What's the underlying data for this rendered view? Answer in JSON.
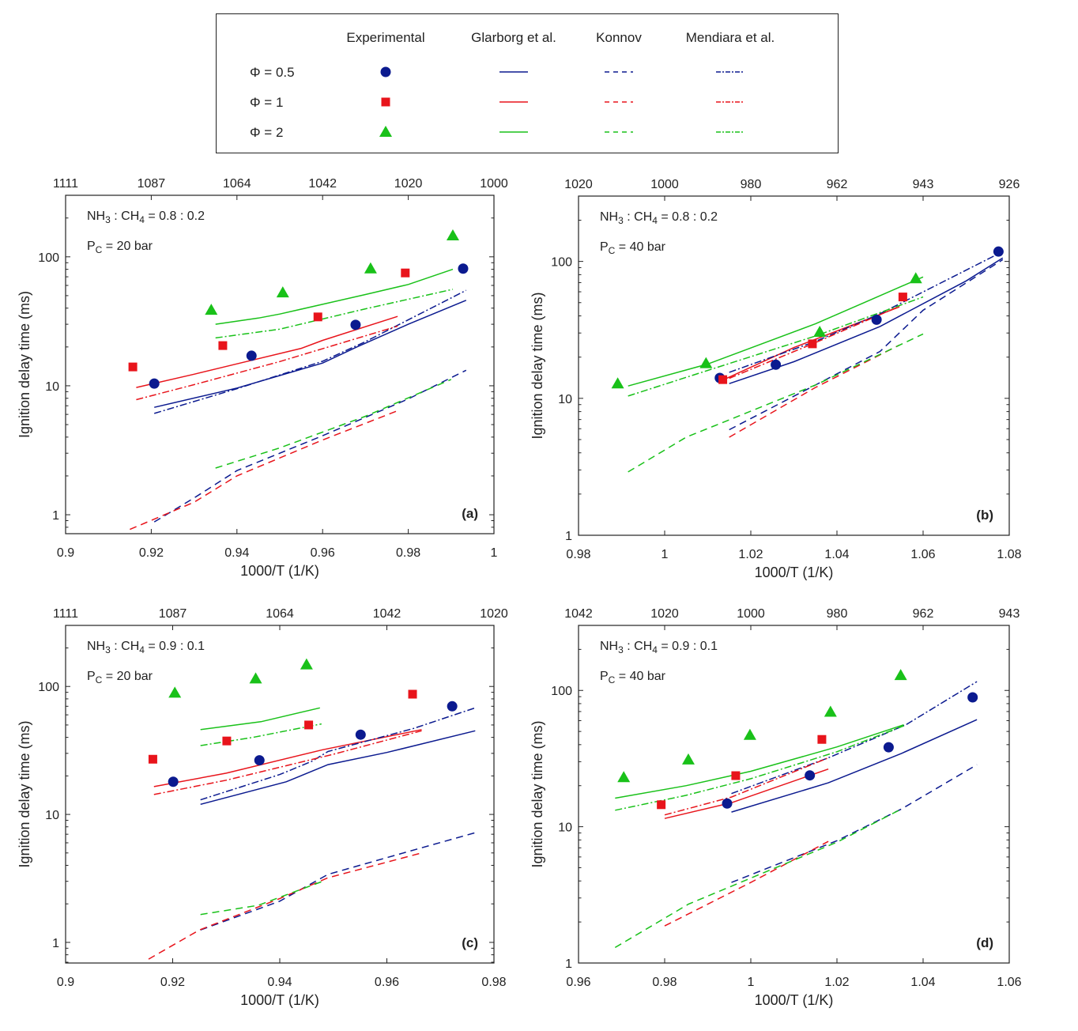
{
  "legend": {
    "column_headers": [
      "Experimental",
      "Glarborg et al.",
      "Konnov",
      "Mendiara et al."
    ],
    "row_labels": [
      "Φ = 0.5",
      "Φ = 1",
      "Φ = 2"
    ],
    "markers": [
      "circle",
      "square",
      "triangle"
    ],
    "line_styles": [
      "solid",
      "dashed",
      "dashdot"
    ]
  },
  "colors": {
    "phi_0_5": "#0b1a8f",
    "phi_1": "#e8141b",
    "phi_2": "#19c119",
    "axis": "#222222"
  },
  "chart_data": [
    {
      "id": "a",
      "type": "scatter",
      "panel_label": "(a)",
      "annotation_mix": "NH3 : CH4 = 0.8 : 0.2",
      "annotation_mix_parts": {
        "a": "NH",
        "a_sub": "3",
        "b": " : CH",
        "b_sub": "4",
        "rest": " = 0.8 : 0.2"
      },
      "annotation_pressure_parts": {
        "p": "P",
        "p_sub": "C",
        "rest": " = 20 bar"
      },
      "xlabel": "1000/T (1/K)",
      "ylabel": "Ignition delay time (ms)",
      "xlim": [
        0.9,
        1.0
      ],
      "ylim": [
        0.713,
        300
      ],
      "yscale": "log",
      "xticks": [
        0.9,
        0.92,
        0.94,
        0.96,
        0.98,
        1.0
      ],
      "xtick_labels": [
        "0.9",
        "0.92",
        "0.94",
        "0.96",
        "0.98",
        "1"
      ],
      "yticks": [
        1,
        10,
        100
      ],
      "ytick_labels": [
        "1",
        "10",
        "100"
      ],
      "top_tick_labels": [
        "1111",
        "1087",
        "1064",
        "1042",
        "1020",
        "1000"
      ],
      "experimental": {
        "phi_0_5": {
          "x": [
            0.9207,
            0.9434,
            0.9677,
            0.9928
          ],
          "y": [
            10.4,
            17.1,
            29.7,
            81
          ]
        },
        "phi_1": {
          "x": [
            0.9157,
            0.9367,
            0.9589,
            0.9793
          ],
          "y": [
            14.0,
            20.5,
            34.2,
            75
          ]
        },
        "phi_2": {
          "x": [
            0.934,
            0.9507,
            0.9712,
            0.9904
          ],
          "y": [
            38.7,
            52.8,
            81,
            146
          ]
        }
      },
      "models": {
        "glarborg": {
          "phi_0_5": {
            "x": [
              0.9207,
              0.94,
              0.96,
              0.968,
              0.98,
              0.9935
            ],
            "y": [
              6.8,
              9.6,
              15.0,
              20.0,
              30.0,
              46
            ]
          },
          "phi_1": {
            "x": [
              0.9165,
              0.93,
              0.94,
              0.955,
              0.96,
              0.9775
            ],
            "y": [
              9.7,
              12.3,
              14.8,
              19.5,
              22.5,
              34.5
            ]
          },
          "phi_2": {
            "x": [
              0.935,
              0.945,
              0.95,
              0.97,
              0.98,
              0.9904
            ],
            "y": [
              30.0,
              33.5,
              36.0,
              51.0,
              61.0,
              80
            ]
          }
        },
        "konnov": {
          "phi_0_5": {
            "x": [
              0.9207,
              0.93,
              0.94,
              0.96,
              0.98,
              0.9935
            ],
            "y": [
              0.88,
              1.35,
              2.2,
              4.1,
              7.9,
              13.2
            ]
          },
          "phi_1": {
            "x": [
              0.915,
              0.93,
              0.94,
              0.96,
              0.9775
            ],
            "y": [
              0.77,
              1.25,
              2.0,
              3.8,
              6.4
            ]
          },
          "phi_2": {
            "x": [
              0.935,
              0.95,
              0.97,
              0.99
            ],
            "y": [
              2.3,
              3.3,
              5.8,
              11.2
            ]
          }
        },
        "mendiara": {
          "phi_0_5": {
            "x": [
              0.9207,
              0.94,
              0.96,
              0.97,
              0.9935
            ],
            "y": [
              6.1,
              9.5,
              15.5,
              22.0,
              55
            ]
          },
          "phi_1": {
            "x": [
              0.9165,
              0.93,
              0.95,
              0.9775
            ],
            "y": [
              7.8,
              10.2,
              15.4,
              29.0
            ]
          },
          "phi_2": {
            "x": [
              0.935,
              0.95,
              0.97,
              0.9904
            ],
            "y": [
              23.5,
              27.5,
              39.5,
              56
            ]
          }
        }
      }
    },
    {
      "id": "b",
      "type": "scatter",
      "panel_label": "(b)",
      "annotation_mix_parts": {
        "a": "NH",
        "a_sub": "3",
        "b": " : CH",
        "b_sub": "4",
        "rest": " = 0.8 : 0.2"
      },
      "annotation_pressure_parts": {
        "p": "P",
        "p_sub": "C",
        "rest": " = 40 bar"
      },
      "xlabel": "1000/T (1/K)",
      "ylabel": "Ignition delay time (ms)",
      "xlim": [
        0.98,
        1.08
      ],
      "ylim": [
        1,
        300
      ],
      "yscale": "log",
      "xticks": [
        0.98,
        1.0,
        1.02,
        1.04,
        1.06,
        1.08
      ],
      "xtick_labels": [
        "0.98",
        "1",
        "1.02",
        "1.04",
        "1.06",
        "1.08"
      ],
      "yticks": [
        1,
        10,
        100
      ],
      "ytick_labels": [
        "1",
        "10",
        "100"
      ],
      "top_tick_labels": [
        "1020",
        "1000",
        "980",
        "962",
        "943",
        "926"
      ],
      "experimental": {
        "phi_0_5": {
          "x": [
            1.0128,
            1.0258,
            1.0492,
            1.0775
          ],
          "y": [
            14.1,
            17.6,
            37.5,
            118
          ]
        },
        "phi_1": {
          "x": [
            1.0135,
            1.0343,
            1.0553
          ],
          "y": [
            13.7,
            25.0,
            55
          ]
        },
        "phi_2": {
          "x": [
            0.9891,
            1.0096,
            1.036,
            1.0583
          ],
          "y": [
            12.8,
            18.0,
            30.5,
            75
          ]
        }
      },
      "models": {
        "glarborg": {
          "phi_0_5": {
            "x": [
              1.015,
              1.03,
              1.05,
              1.07,
              1.0785
            ],
            "y": [
              12.8,
              18.5,
              33.5,
              72,
              106
            ]
          },
          "phi_1": {
            "x": [
              1.0135,
              1.03,
              1.0545
            ],
            "y": [
              13.6,
              23.5,
              46.5
            ]
          },
          "phi_2": {
            "x": [
              0.9915,
              1.01,
              1.035,
              1.06
            ],
            "y": [
              12.3,
              17.8,
              35.0,
              77
            ]
          }
        },
        "konnov": {
          "phi_0_5": {
            "x": [
              1.015,
              1.035,
              1.05,
              1.06,
              1.0785
            ],
            "y": [
              5.9,
              12.5,
              22.0,
              44.0,
              103
            ]
          },
          "phi_1": {
            "x": [
              1.015,
              1.035,
              1.0545
            ],
            "y": [
              5.2,
              12.0,
              24.5
            ]
          },
          "phi_2": {
            "x": [
              0.9915,
              1.005,
              1.035,
              1.06
            ],
            "y": [
              2.9,
              5.2,
              12.5,
              29.5
            ]
          }
        },
        "mendiara": {
          "phi_0_5": {
            "x": [
              1.015,
              1.035,
              1.05,
              1.0785
            ],
            "y": [
              15.5,
              26.0,
              41.5,
              118
            ]
          },
          "phi_1": {
            "x": [
              1.015,
              1.035,
              1.0545
            ],
            "y": [
              14.0,
              25.5,
              47.0
            ]
          },
          "phi_2": {
            "x": [
              0.9915,
              1.01,
              1.035,
              1.06
            ],
            "y": [
              10.4,
              16.0,
              28.5,
              55
            ]
          }
        }
      }
    },
    {
      "id": "c",
      "type": "scatter",
      "panel_label": "(c)",
      "annotation_mix_parts": {
        "a": "NH",
        "a_sub": "3",
        "b": " : CH",
        "b_sub": "4",
        "rest": " = 0.9 : 0.1"
      },
      "annotation_pressure_parts": {
        "p": "P",
        "p_sub": "C",
        "rest": " = 20 bar"
      },
      "xlabel": "1000/T (1/K)",
      "ylabel": "Ignition delay time (ms)",
      "xlim": [
        0.9,
        0.98
      ],
      "ylim": [
        0.69,
        300
      ],
      "yscale": "log",
      "xticks": [
        0.9,
        0.92,
        0.94,
        0.96,
        0.98
      ],
      "xtick_labels": [
        "0.9",
        "0.92",
        "0.94",
        "0.96",
        "0.98"
      ],
      "yticks": [
        1,
        10,
        100
      ],
      "ytick_labels": [
        "1",
        "10",
        "100"
      ],
      "top_tick_labels": [
        "1111",
        "1087",
        "1064",
        "1042",
        "1020"
      ],
      "experimental": {
        "phi_0_5": {
          "x": [
            0.9201,
            0.9362,
            0.9551,
            0.9722
          ],
          "y": [
            18.0,
            26.5,
            42.0,
            70
          ]
        },
        "phi_1": {
          "x": [
            0.9163,
            0.9301,
            0.9454,
            0.9648
          ],
          "y": [
            27.0,
            37.5,
            50,
            87
          ]
        },
        "phi_2": {
          "x": [
            0.9204,
            0.9355,
            0.945
          ],
          "y": [
            89,
            115,
            148
          ]
        }
      },
      "models": {
        "glarborg": {
          "phi_0_5": {
            "x": [
              0.9252,
              0.9412,
              0.949,
              0.96,
              0.9765
            ],
            "y": [
              12.0,
              18.0,
              24.5,
              30.5,
              45
            ]
          },
          "phi_1": {
            "x": [
              0.9165,
              0.93,
              0.948,
              0.9665
            ],
            "y": [
              16.5,
              21.0,
              32.0,
              46
            ]
          },
          "phi_2": {
            "x": [
              0.9252,
              0.9365,
              0.9475
            ],
            "y": [
              46.0,
              53.0,
              68
            ]
          }
        },
        "konnov": {
          "phi_0_5": {
            "x": [
              0.9252,
              0.94,
              0.949,
              0.96,
              0.9765
            ],
            "y": [
              1.25,
              2.1,
              3.4,
              4.6,
              7.2
            ]
          },
          "phi_1": {
            "x": [
              0.9155,
              0.925,
              0.94,
              0.949,
              0.9665
            ],
            "y": [
              0.74,
              1.25,
              2.2,
              3.2,
              5.0
            ]
          },
          "phi_2": {
            "x": [
              0.9252,
              0.936,
              0.948
            ],
            "y": [
              1.65,
              1.95,
              3.0
            ]
          }
        },
        "mendiara": {
          "phi_0_5": {
            "x": [
              0.9252,
              0.94,
              0.946,
              0.949,
              0.965,
              0.9765
            ],
            "y": [
              13.0,
              20.5,
              26.0,
              31.0,
              47.0,
              68
            ]
          },
          "phi_1": {
            "x": [
              0.9165,
              0.93,
              0.95,
              0.9665
            ],
            "y": [
              14.3,
              18.5,
              29.5,
              45
            ]
          },
          "phi_2": {
            "x": [
              0.9252,
              0.935,
              0.9478
            ],
            "y": [
              34.5,
              40.0,
              51
            ]
          }
        }
      }
    },
    {
      "id": "d",
      "type": "scatter",
      "panel_label": "(d)",
      "annotation_mix_parts": {
        "a": "NH",
        "a_sub": "3",
        "b": " : CH",
        "b_sub": "4",
        "rest": " = 0.9 : 0.1"
      },
      "annotation_pressure_parts": {
        "p": "P",
        "p_sub": "C",
        "rest": " = 40 bar"
      },
      "xlabel": "1000/T (1/K)",
      "ylabel": "Ignition delay time (ms)",
      "xlim": [
        0.96,
        1.06
      ],
      "ylim": [
        1,
        300
      ],
      "yscale": "log",
      "xticks": [
        0.96,
        0.98,
        1.0,
        1.02,
        1.04,
        1.06
      ],
      "xtick_labels": [
        "0.96",
        "0.98",
        "1",
        "1.02",
        "1.04",
        "1.06"
      ],
      "yticks": [
        1,
        10,
        100
      ],
      "ytick_labels": [
        "1",
        "10",
        "100"
      ],
      "top_tick_labels": [
        "1042",
        "1020",
        "1000",
        "980",
        "962",
        "943"
      ],
      "experimental": {
        "phi_0_5": {
          "x": [
            0.9945,
            1.0137,
            1.032,
            1.0515
          ],
          "y": [
            14.8,
            23.8,
            38.3,
            89
          ]
        },
        "phi_1": {
          "x": [
            0.9792,
            0.9965,
            1.0165
          ],
          "y": [
            14.5,
            23.7,
            43.7
          ]
        },
        "phi_2": {
          "x": [
            0.9705,
            0.9855,
            0.9998,
            1.0185,
            1.0348
          ],
          "y": [
            23.0,
            31.0,
            47.0,
            69.5,
            129
          ]
        }
      },
      "models": {
        "glarborg": {
          "phi_0_5": {
            "x": [
              0.9955,
              1.018,
              1.035,
              1.0525
            ],
            "y": [
              12.8,
              21.0,
              34.5,
              61
            ]
          },
          "phi_1": {
            "x": [
              0.98,
              0.9955,
              1.018
            ],
            "y": [
              11.5,
              15.0,
              26.5
            ]
          },
          "phi_2": {
            "x": [
              0.9685,
              0.985,
              1.0,
              1.02,
              1.0355
            ],
            "y": [
              16.2,
              20.0,
              25.5,
              38.5,
              56
            ]
          }
        },
        "konnov": {
          "phi_0_5": {
            "x": [
              0.9955,
              1.02,
              1.035,
              1.0525
            ],
            "y": [
              3.9,
              7.9,
              13.5,
              28.5
            ]
          },
          "phi_1": {
            "x": [
              0.98,
              1.0,
              1.018
            ],
            "y": [
              1.87,
              3.9,
              7.8
            ]
          },
          "phi_2": {
            "x": [
              0.9685,
              0.9855,
              1.0,
              1.02,
              1.035
            ],
            "y": [
              1.3,
              2.7,
              4.2,
              7.7,
              13.5
            ]
          }
        },
        "mendiara": {
          "phi_0_5": {
            "x": [
              0.9955,
              1.018,
              1.036,
              1.0525
            ],
            "y": [
              17.5,
              32.0,
              56,
              116
            ]
          },
          "phi_1": {
            "x": [
              0.98,
              0.9955,
              1.018
            ],
            "y": [
              12.2,
              16.5,
              32.0
            ]
          },
          "phi_2": {
            "x": [
              0.9685,
              0.985,
              1.0,
              1.02,
              1.0355
            ],
            "y": [
              13.2,
              17.0,
              22.5,
              35.5,
              55
            ]
          }
        }
      }
    }
  ]
}
